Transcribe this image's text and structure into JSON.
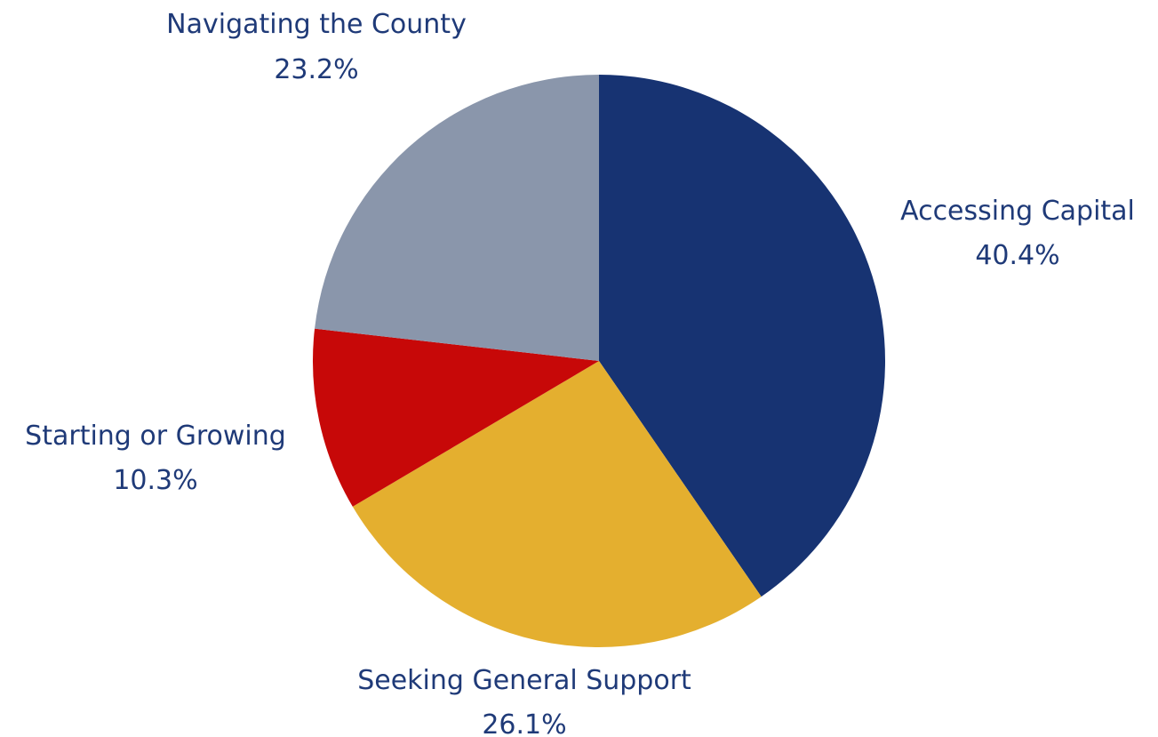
{
  "chart_data": {
    "type": "pie",
    "start": "12 o'clock",
    "direction": "clockwise",
    "slices": [
      {
        "label": "Accessing Capital",
        "value": 40.4,
        "value_label": "40.4%",
        "color": "#173372"
      },
      {
        "label": "Seeking General Support",
        "value": 26.1,
        "value_label": "26.1%",
        "color": "#E4AF2F"
      },
      {
        "label": "Starting or Growing",
        "value": 10.3,
        "value_label": "10.3%",
        "color": "#C70808"
      },
      {
        "label": "Navigating the County",
        "value": 23.2,
        "value_label": "23.2%",
        "color": "#8A96AB"
      }
    ],
    "label_color": "#1F3A78",
    "legend": "none"
  }
}
